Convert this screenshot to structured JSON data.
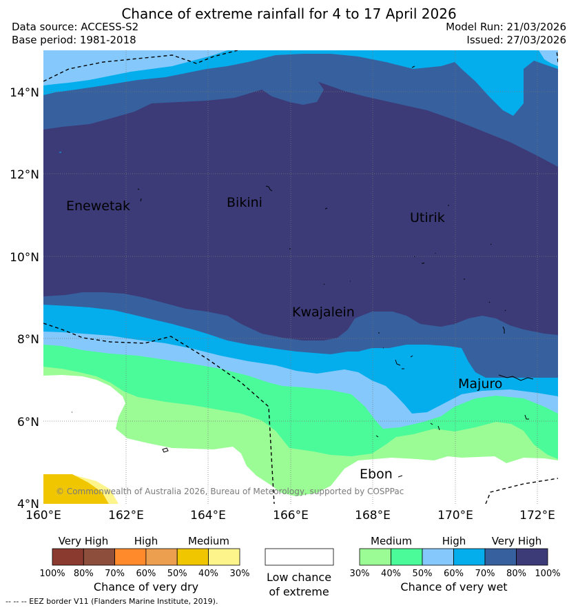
{
  "title": "Chance of extreme rainfall for 4 to 17 April 2026",
  "header": {
    "data_source": "Data source: ACCESS-S2",
    "base_period": "Base period: 1981-2018",
    "model_run": "Model Run: 21/03/2026",
    "issued": "Issued: 27/03/2026"
  },
  "map": {
    "lat_labels": [
      "14°N",
      "12°N",
      "10°N",
      "8°N",
      "6°N",
      "4°N"
    ],
    "lon_labels": [
      "160°E",
      "162°E",
      "164°E",
      "166°E",
      "168°E",
      "170°E",
      "172°E"
    ],
    "places": {
      "enewetak": "Enewetak",
      "bikini": "Bikini",
      "utirik": "Utirik",
      "kwajalein": "Kwajalein",
      "majuro": "Majuro",
      "ebon": "Ebon"
    },
    "copyright": "© Commonwealth of Australia 2026, Bureau of Meteorology, supported by COSPPac"
  },
  "legend": {
    "dry": {
      "categories": [
        "Very High",
        "High",
        "Medium"
      ],
      "percents": [
        "100%",
        "80%",
        "70%",
        "60%",
        "50%",
        "40%",
        "30%"
      ],
      "colors": [
        "#8b3a30",
        "#8d4e3c",
        "#fe8a2c",
        "#eca04f",
        "#f0c600",
        "#fef48c"
      ],
      "title": "Chance of very dry"
    },
    "low": {
      "line1": "Low chance",
      "line2": "of extreme"
    },
    "wet": {
      "categories": [
        "Medium",
        "High",
        "Very High"
      ],
      "percents": [
        "30%",
        "40%",
        "50%",
        "60%",
        "70%",
        "80%",
        "100%"
      ],
      "colors": [
        "#9bfc96",
        "#4bfb9a",
        "#84c8fc",
        "#04aeec",
        "#36619e",
        "#3c3b78"
      ],
      "title": "Chance of very wet"
    }
  },
  "footer": "-- --  -- EEZ border V11 (Flanders Marine Institute, 2019)."
}
